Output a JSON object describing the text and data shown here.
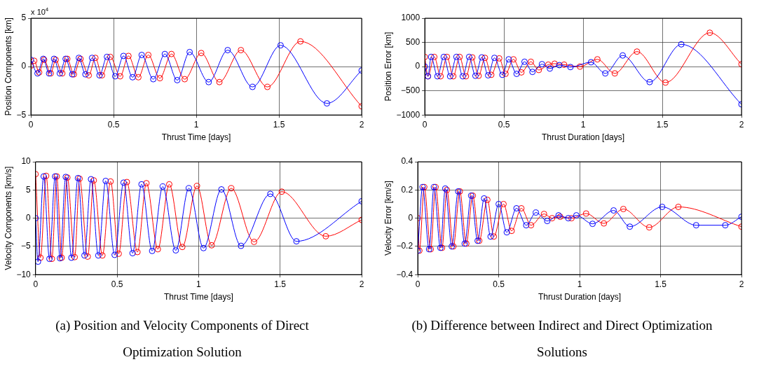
{
  "chart_data": [
    {
      "type": "line",
      "xlabel": "Thrust Time [days]",
      "ylabel": "Position Components [km]",
      "annotations": [
        "x 10$^{4}$"
      ],
      "xlim": [
        0,
        2
      ],
      "xticks": [
        0,
        0.5,
        1,
        1.5,
        2
      ],
      "ylim": [
        -5,
        5
      ],
      "yticks": [
        -5,
        0,
        5
      ],
      "grid": true,
      "marker": "circle",
      "series": [
        {
          "color": "#0000ff",
          "x": [
            0,
            0.04,
            0.075,
            0.11,
            0.14,
            0.175,
            0.21,
            0.25,
            0.29,
            0.33,
            0.37,
            0.415,
            0.46,
            0.51,
            0.56,
            0.615,
            0.67,
            0.74,
            0.81,
            0.885,
            0.96,
            1.075,
            1.19,
            1.34,
            1.51,
            1.79,
            2.0
          ],
          "values": [
            0.7,
            -0.7,
            0.8,
            -0.7,
            0.8,
            -0.7,
            0.8,
            -0.8,
            0.9,
            -0.8,
            0.9,
            -0.9,
            1.0,
            -1.0,
            1.1,
            -1.1,
            1.2,
            -1.3,
            1.3,
            -1.4,
            1.5,
            -1.6,
            1.7,
            -2.1,
            2.2,
            -3.8,
            -0.4
          ]
        },
        {
          "color": "#ff0000",
          "x": [
            0,
            0.02,
            0.05,
            0.08,
            0.12,
            0.15,
            0.19,
            0.22,
            0.26,
            0.3,
            0.35,
            0.39,
            0.43,
            0.48,
            0.54,
            0.59,
            0.65,
            0.71,
            0.78,
            0.85,
            0.93,
            1.03,
            1.14,
            1.27,
            1.43,
            1.63,
            2.0
          ],
          "values": [
            0.1,
            0.6,
            -0.6,
            0.7,
            -0.7,
            0.7,
            -0.7,
            0.8,
            -0.8,
            0.8,
            -0.9,
            0.9,
            -0.9,
            1.0,
            -1.0,
            1.1,
            -1.1,
            1.2,
            -1.2,
            1.3,
            -1.3,
            1.4,
            -1.6,
            1.7,
            -2.1,
            2.6,
            -4.1
          ]
        }
      ]
    },
    {
      "type": "line",
      "title": "(a) Position and Velocity Components of Direct Optimization Solution",
      "xlabel": "Thrust Time [days]",
      "ylabel": "Velocity Components [km/s]",
      "xlim": [
        0,
        2
      ],
      "xticks": [
        0,
        0.5,
        1,
        1.5,
        2
      ],
      "ylim": [
        -10,
        10
      ],
      "yticks": [
        -10,
        -5,
        0,
        5,
        10
      ],
      "grid": true,
      "marker": "circle",
      "series": [
        {
          "color": "#0000ff",
          "x": [
            0,
            0.015,
            0.05,
            0.085,
            0.12,
            0.15,
            0.185,
            0.22,
            0.26,
            0.3,
            0.34,
            0.385,
            0.43,
            0.485,
            0.54,
            0.595,
            0.65,
            0.715,
            0.78,
            0.86,
            0.94,
            1.03,
            1.14,
            1.26,
            1.44,
            1.6,
            2.0
          ],
          "values": [
            0,
            -7.7,
            7.4,
            -7.2,
            7.4,
            -7.1,
            7.3,
            -7.0,
            7.1,
            -6.6,
            6.9,
            -6.6,
            6.6,
            -6.5,
            6.3,
            -6.2,
            6.0,
            -5.8,
            5.6,
            -5.7,
            5.3,
            -5.3,
            5.1,
            -4.9,
            4.3,
            -4.1,
            3.0
          ]
        },
        {
          "color": "#ff0000",
          "x": [
            0,
            0.03,
            0.065,
            0.1,
            0.13,
            0.16,
            0.195,
            0.24,
            0.27,
            0.32,
            0.357,
            0.41,
            0.46,
            0.51,
            0.56,
            0.625,
            0.68,
            0.75,
            0.82,
            0.9,
            0.99,
            1.08,
            1.2,
            1.34,
            1.51,
            1.78,
            2.0
          ],
          "values": [
            7.8,
            -7.0,
            7.5,
            -7.2,
            7.4,
            -7.0,
            7.2,
            -6.9,
            7.0,
            -6.8,
            6.7,
            -6.6,
            6.5,
            -6.3,
            6.4,
            -6.0,
            6.2,
            -5.5,
            6.0,
            -5.1,
            5.7,
            -4.8,
            5.3,
            -4.2,
            4.7,
            -3.2,
            -0.3
          ]
        }
      ]
    },
    {
      "type": "line",
      "xlabel": "Thrust Duration [days]",
      "ylabel": "Position Error [km]",
      "xlim": [
        0,
        2
      ],
      "xticks": [
        0,
        0.5,
        1,
        1.5,
        2
      ],
      "ylim": [
        -1000,
        1000
      ],
      "yticks": [
        -1000,
        -500,
        0,
        500,
        1000
      ],
      "grid": true,
      "marker": "circle",
      "series": [
        {
          "color": "#0000ff",
          "x": [
            0,
            0.02,
            0.04,
            0.08,
            0.12,
            0.16,
            0.2,
            0.24,
            0.28,
            0.32,
            0.36,
            0.4,
            0.44,
            0.49,
            0.53,
            0.58,
            0.63,
            0.68,
            0.74,
            0.79,
            0.85,
            0.92,
            1.05,
            1.14,
            1.25,
            1.42,
            1.62,
            2.0
          ],
          "values": [
            0,
            -200,
            200,
            -200,
            200,
            -200,
            200,
            -200,
            200,
            -190,
            190,
            -180,
            180,
            -170,
            150,
            -150,
            100,
            -110,
            50,
            -40,
            30,
            -10,
            90,
            -140,
            230,
            -320,
            460,
            -780
          ]
        },
        {
          "color": "#ff0000",
          "x": [
            0,
            0.02,
            0.06,
            0.1,
            0.14,
            0.18,
            0.22,
            0.26,
            0.3,
            0.34,
            0.38,
            0.42,
            0.47,
            0.51,
            0.56,
            0.61,
            0.67,
            0.72,
            0.78,
            0.82,
            0.88,
            0.98,
            1.09,
            1.2,
            1.34,
            1.52,
            1.8,
            2.0
          ],
          "values": [
            200,
            -200,
            200,
            -200,
            200,
            -200,
            200,
            -200,
            190,
            -190,
            180,
            -170,
            170,
            -150,
            150,
            -120,
            100,
            -70,
            40,
            60,
            40,
            0,
            150,
            -140,
            310,
            -330,
            700,
            50
          ]
        }
      ]
    },
    {
      "type": "line",
      "title": "(b) Difference between Indirect and Direct Optimization Solutions",
      "xlabel": "Thrust Duration [days]",
      "ylabel": "Velocity Error [km/s]",
      "xlim": [
        0,
        2
      ],
      "xticks": [
        0,
        0.5,
        1,
        1.5,
        2
      ],
      "ylim": [
        -0.4,
        0.4
      ],
      "yticks": [
        -0.4,
        -0.2,
        0,
        0.2,
        0.4
      ],
      "grid": true,
      "marker": "circle",
      "series": [
        {
          "color": "#0000ff",
          "x": [
            0,
            0.03,
            0.07,
            0.1,
            0.14,
            0.17,
            0.21,
            0.25,
            0.29,
            0.33,
            0.37,
            0.41,
            0.45,
            0.5,
            0.55,
            0.61,
            0.67,
            0.73,
            0.8,
            0.87,
            0.93,
            0.98,
            1.08,
            1.21,
            1.31,
            1.51,
            1.72,
            1.9,
            2.0
          ],
          "values": [
            -0.23,
            0.22,
            -0.22,
            0.22,
            -0.21,
            0.21,
            -0.2,
            0.19,
            -0.18,
            0.16,
            -0.16,
            0.14,
            -0.13,
            0.1,
            -0.1,
            0.07,
            -0.05,
            0.04,
            -0.02,
            0.02,
            0,
            0.02,
            -0.04,
            0.055,
            -0.06,
            0.08,
            -0.05,
            -0.05,
            0.01
          ]
        },
        {
          "color": "#ff0000",
          "x": [
            0,
            0.01,
            0.04,
            0.08,
            0.11,
            0.15,
            0.18,
            0.22,
            0.26,
            0.3,
            0.34,
            0.38,
            0.43,
            0.47,
            0.53,
            0.58,
            0.64,
            0.7,
            0.78,
            0.83,
            0.88,
            0.95,
            1.04,
            1.15,
            1.27,
            1.43,
            1.61,
            2.0
          ],
          "values": [
            0,
            -0.23,
            0.22,
            -0.22,
            0.22,
            -0.21,
            0.2,
            -0.2,
            0.19,
            -0.18,
            0.16,
            -0.16,
            0.13,
            -0.13,
            0.1,
            -0.09,
            0.07,
            -0.05,
            0.03,
            0,
            0.01,
            0,
            0.033,
            -0.037,
            0.065,
            -0.065,
            0.08,
            -0.06
          ]
        }
      ]
    }
  ]
}
